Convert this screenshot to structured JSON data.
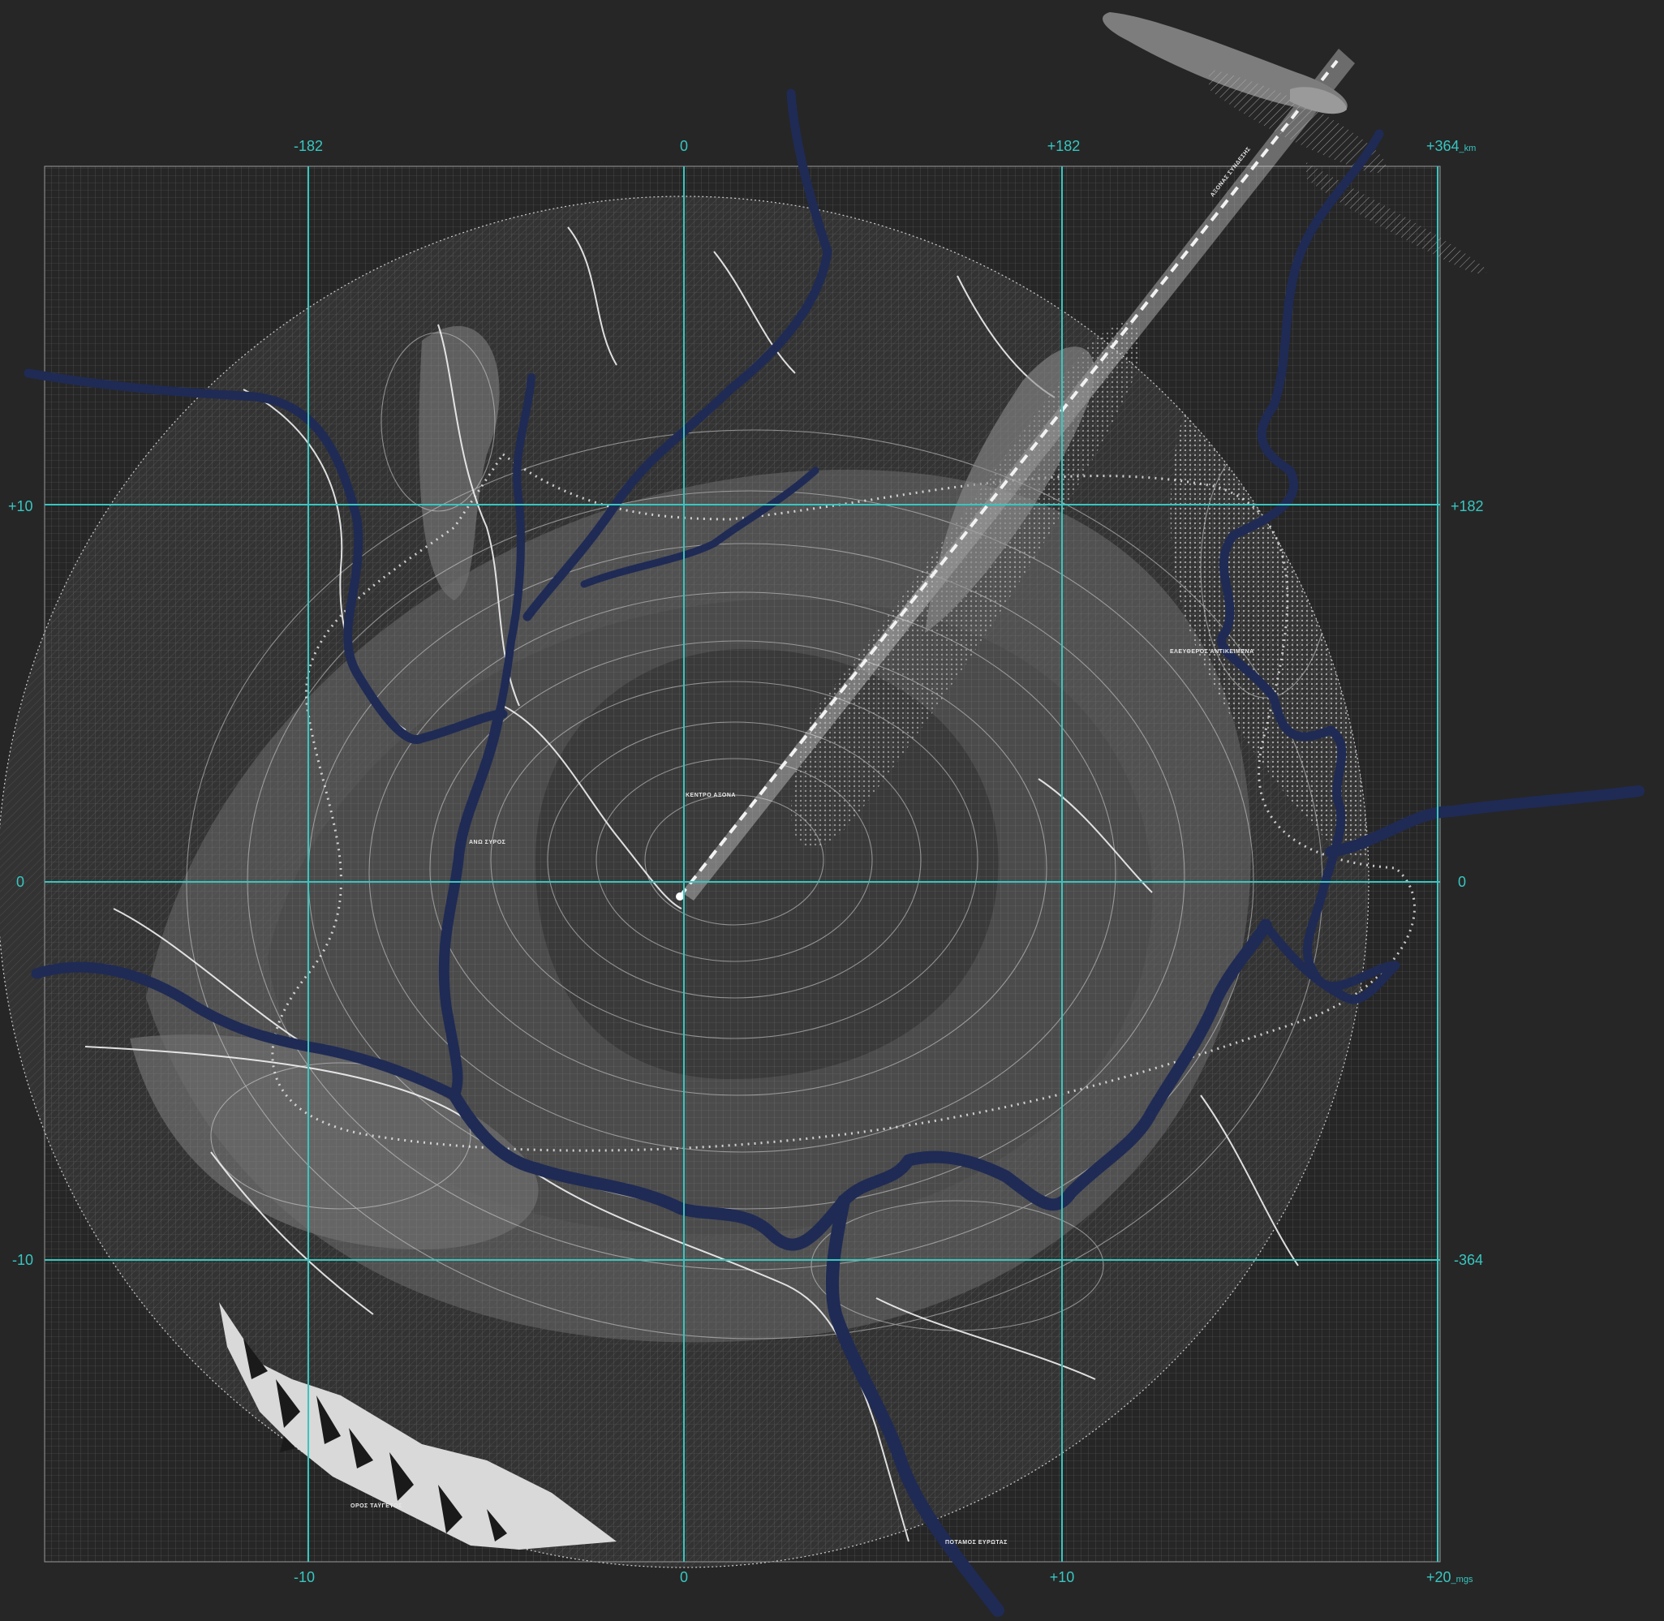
{
  "axes": {
    "top": [
      {
        "value": "-182"
      },
      {
        "value": "0"
      },
      {
        "value": "+182"
      },
      {
        "value": "+364",
        "unit": "_km"
      }
    ],
    "bottom": [
      {
        "value": "-10"
      },
      {
        "value": "0"
      },
      {
        "value": "+10"
      },
      {
        "value": "+20",
        "unit": "_mgs"
      }
    ],
    "left": [
      {
        "value": "+10"
      },
      {
        "value": "0"
      },
      {
        "value": "-10"
      }
    ],
    "right": [
      {
        "value": "+182"
      },
      {
        "value": "0"
      },
      {
        "value": "-364"
      }
    ]
  },
  "places": {
    "center": "ΚΕΝΤΡΟ ΑΞΟΝΑ",
    "west": "ΑΝΩ ΣΥΡΟΣ",
    "east": "ΕΛΕΥΘΕΡΟΣ ΑΝΤΙΚΕΙΜΕΝΑ",
    "axis": "ΑΞΟΝΑΣ ΣΥΝΔΕΣΗΣ",
    "mountains": "ΟΡΟΣ ΤΑΫΓΕΤΟΣ",
    "river": "ΠΟΤΑΜΟΣ ΕΥΡΩΤΑΣ"
  },
  "colors": {
    "background": "#262626",
    "grid_axis": "#38c6c0",
    "river": "#1f2b55",
    "contour": "#d9d9d9"
  }
}
